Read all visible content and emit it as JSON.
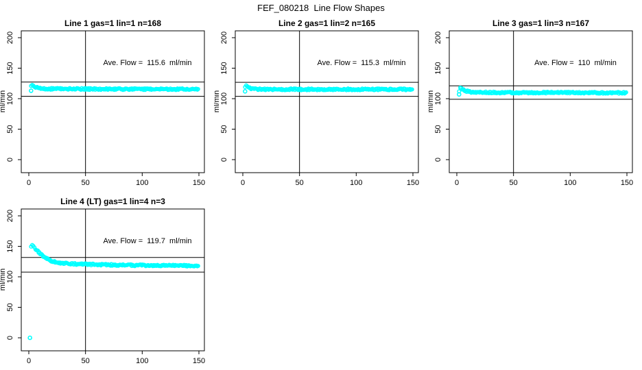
{
  "page_title": "FEF_080218  Line Flow Shapes",
  "colors": {
    "points": "#00FFFF",
    "axis": "#000000",
    "background": "#FFFFFF"
  },
  "chart_data": [
    {
      "type": "scatter",
      "title": "Line 1 gas=1 lin=1 n=168",
      "annotation": "Ave. Flow =  115.6  ml/min",
      "ave_flow_ml_min": 115.6,
      "xlabel": "",
      "ylabel": "ml/min",
      "xticks": [
        0,
        50,
        100,
        150
      ],
      "yticks": [
        0,
        50,
        100,
        150,
        200
      ],
      "xlim": [
        -6,
        156
      ],
      "ylim": [
        -22,
        212
      ],
      "vline_x": 50,
      "hlines": [
        127.2,
        104.0
      ],
      "series_anchor_points": [
        [
          2,
          120
        ],
        [
          3,
          123
        ],
        [
          4,
          122
        ],
        [
          6,
          119
        ],
        [
          8,
          117.5
        ],
        [
          12,
          116.5
        ],
        [
          20,
          116
        ],
        [
          60,
          115.8
        ],
        [
          150,
          115.4
        ]
      ],
      "outlier_points": [
        [
          2,
          113
        ]
      ]
    },
    {
      "type": "scatter",
      "title": "Line 2 gas=1 lin=2 n=165",
      "annotation": "Ave. Flow =  115.3  ml/min",
      "ave_flow_ml_min": 115.3,
      "xlabel": "",
      "ylabel": "ml/min",
      "xticks": [
        0,
        50,
        100,
        150
      ],
      "yticks": [
        0,
        50,
        100,
        150,
        200
      ],
      "xlim": [
        -6,
        156
      ],
      "ylim": [
        -22,
        212
      ],
      "vline_x": 50,
      "hlines": [
        126.8,
        103.8
      ],
      "series_anchor_points": [
        [
          2,
          118
        ],
        [
          3,
          121
        ],
        [
          4,
          120
        ],
        [
          6,
          117.5
        ],
        [
          8,
          116.5
        ],
        [
          12,
          115.8
        ],
        [
          20,
          115.4
        ],
        [
          60,
          115.3
        ],
        [
          150,
          115.2
        ]
      ],
      "outlier_points": [
        [
          2,
          112
        ]
      ]
    },
    {
      "type": "scatter",
      "title": "Line 3 gas=1 lin=3 n=167",
      "annotation": "Ave. Flow =  110  ml/min",
      "ave_flow_ml_min": 110,
      "xlabel": "",
      "ylabel": "ml/min",
      "xticks": [
        0,
        50,
        100,
        150
      ],
      "yticks": [
        0,
        50,
        100,
        150,
        200
      ],
      "xlim": [
        -6,
        156
      ],
      "ylim": [
        -22,
        212
      ],
      "vline_x": 50,
      "hlines": [
        121.0,
        99.0
      ],
      "series_anchor_points": [
        [
          2,
          112
        ],
        [
          3,
          118
        ],
        [
          4,
          117
        ],
        [
          6,
          114
        ],
        [
          8,
          112.5
        ],
        [
          12,
          111
        ],
        [
          20,
          110.5
        ],
        [
          40,
          109.8
        ],
        [
          80,
          110
        ],
        [
          150,
          109.5
        ]
      ],
      "outlier_points": [
        [
          2,
          107
        ]
      ]
    },
    {
      "type": "scatter",
      "title": "Line 4 (LT) gas=1 lin=4 n=3",
      "annotation": "Ave. Flow =  119.7  ml/min",
      "ave_flow_ml_min": 119.7,
      "xlabel": "",
      "ylabel": "ml/min",
      "xticks": [
        0,
        50,
        100,
        150
      ],
      "yticks": [
        0,
        50,
        100,
        150,
        200
      ],
      "xlim": [
        -6,
        156
      ],
      "ylim": [
        -22,
        212
      ],
      "vline_x": 50,
      "hlines": [
        131.7,
        107.7
      ],
      "series_anchor_points": [
        [
          2,
          150
        ],
        [
          3,
          151
        ],
        [
          4,
          149.5
        ],
        [
          5,
          148
        ],
        [
          6,
          146
        ],
        [
          8,
          142
        ],
        [
          10,
          138.5
        ],
        [
          12,
          135
        ],
        [
          14,
          132
        ],
        [
          16,
          129.5
        ],
        [
          18,
          127.5
        ],
        [
          20,
          126
        ],
        [
          24,
          124
        ],
        [
          28,
          122.8
        ],
        [
          34,
          121.8
        ],
        [
          42,
          121
        ],
        [
          55,
          120.3
        ],
        [
          70,
          119.7
        ],
        [
          90,
          119
        ],
        [
          110,
          118.6
        ],
        [
          130,
          118.2
        ],
        [
          150,
          117.8
        ]
      ],
      "outlier_points": [
        [
          1,
          0
        ]
      ]
    }
  ]
}
